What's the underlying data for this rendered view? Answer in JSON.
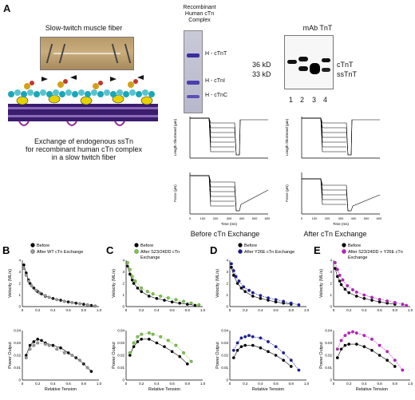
{
  "panel_A": {
    "letter": "A",
    "fiber_title": "Slow-twitch muscle fiber",
    "exchange_caption_lines": [
      "Exchange of endogenous ssTn",
      "for recombinant human cTn complex",
      "in a slow twitch fiber"
    ],
    "complex_title_lines": [
      "Recombinant",
      "Human cTn",
      "Complex"
    ],
    "gel_labels": [
      "H - cTnT",
      "H - cTnI",
      "H - cTnC"
    ],
    "western_title": "mAb TnT",
    "mw_labels": [
      "36 kD",
      "33 kD"
    ],
    "band_labels": [
      "cTnT",
      "ssTnT"
    ],
    "lane_numbers": [
      "1",
      "2",
      "3",
      "4"
    ],
    "length_ylabel": "Length Shortened (µm)",
    "length_ticks": [
      "0",
      "20",
      "40",
      "60",
      "80",
      "100",
      "120",
      "140"
    ],
    "force_ylabel": "Force (µN)",
    "force_ticks": [
      "0",
      "20",
      "40",
      "60",
      "80",
      "100",
      "120"
    ],
    "time_label": "Time (ms)",
    "time_ticks": [
      "0",
      "100",
      "200",
      "300",
      "400",
      "500",
      "600"
    ],
    "before_caption": "Before cTn Exchange",
    "after_caption": "After cTn Exchange"
  },
  "bottom_panels": [
    {
      "letter": "B",
      "legend": [
        "Before",
        "After WT cTn Exchange"
      ],
      "after_color": "#9a9a9a"
    },
    {
      "letter": "C",
      "legend": [
        "Before",
        "After S23/24DD cTn",
        "Exchange"
      ],
      "after_color": "#7ac943"
    },
    {
      "letter": "D",
      "legend": [
        "Before",
        "After Y26E cTn Exchange"
      ],
      "after_color": "#1a1aa8"
    },
    {
      "letter": "E",
      "legend": [
        "Before",
        "After S23/24DD + Y26E cTn",
        "Exchange"
      ],
      "after_color": "#c21ec9"
    }
  ],
  "axes": {
    "velocity_ylabel": "Velocity (ML/s)",
    "power_ylabel": "Power Output",
    "xlabel": "Relative Tension",
    "velocity_ticks": [
      "0",
      "1",
      "2",
      "3",
      "4"
    ],
    "power_ticks": [
      "0",
      "0.01",
      "0.02",
      "0.03",
      "0.04"
    ],
    "x_ticks": [
      "0",
      "0.2",
      "0.4",
      "0.6",
      "0.8",
      "1.0"
    ]
  },
  "chart_data": [
    {
      "type": "scatter",
      "panel": "B",
      "xlabel": "Relative Tension",
      "ylabel": "Velocity (ML/s)",
      "ylim": [
        0,
        4
      ],
      "xlim": [
        0,
        1
      ],
      "series": [
        {
          "name": "Before",
          "color": "#000000",
          "x": [
            0.02,
            0.05,
            0.08,
            0.1,
            0.15,
            0.2,
            0.25,
            0.3,
            0.4,
            0.5,
            0.6,
            0.7,
            0.8,
            0.9,
            0.95
          ],
          "y": [
            3.6,
            2.9,
            2.3,
            2.0,
            1.6,
            1.3,
            1.1,
            0.9,
            0.7,
            0.55,
            0.4,
            0.3,
            0.2,
            0.1,
            0.05
          ]
        },
        {
          "name": "After WT cTn Exchange",
          "color": "#9a9a9a",
          "x": [
            0.02,
            0.05,
            0.08,
            0.12,
            0.18,
            0.22,
            0.3,
            0.35,
            0.45,
            0.55,
            0.65,
            0.75,
            0.85,
            0.95
          ],
          "y": [
            3.3,
            2.7,
            2.2,
            1.8,
            1.4,
            1.2,
            0.95,
            0.8,
            0.6,
            0.45,
            0.35,
            0.25,
            0.15,
            0.05
          ]
        }
      ]
    },
    {
      "type": "scatter",
      "panel": "B",
      "xlabel": "Relative Tension",
      "ylabel": "Power Output",
      "ylim": [
        0,
        0.04
      ],
      "xlim": [
        0,
        1
      ],
      "series": [
        {
          "name": "Before",
          "color": "#000000",
          "x": [
            0.05,
            0.1,
            0.15,
            0.2,
            0.25,
            0.3,
            0.4,
            0.5,
            0.6,
            0.7,
            0.8,
            0.9
          ],
          "y": [
            0.02,
            0.028,
            0.031,
            0.033,
            0.032,
            0.03,
            0.028,
            0.026,
            0.022,
            0.018,
            0.013,
            0.007
          ]
        },
        {
          "name": "After WT cTn Exchange",
          "color": "#9a9a9a",
          "x": [
            0.05,
            0.1,
            0.15,
            0.2,
            0.3,
            0.35,
            0.45,
            0.55,
            0.65,
            0.75,
            0.85
          ],
          "y": [
            0.018,
            0.025,
            0.028,
            0.03,
            0.029,
            0.028,
            0.025,
            0.022,
            0.02,
            0.016,
            0.01
          ]
        }
      ]
    },
    {
      "type": "scatter",
      "panel": "C",
      "xlabel": "Relative Tension",
      "ylabel": "Velocity (ML/s)",
      "ylim": [
        0,
        4
      ],
      "xlim": [
        0,
        1
      ],
      "series": [
        {
          "name": "Before",
          "color": "#000000",
          "x": [
            0.02,
            0.05,
            0.08,
            0.1,
            0.15,
            0.2,
            0.3,
            0.4,
            0.5,
            0.6,
            0.7,
            0.8,
            0.9
          ],
          "y": [
            3.5,
            2.8,
            2.3,
            2.0,
            1.6,
            1.3,
            0.9,
            0.7,
            0.55,
            0.4,
            0.3,
            0.2,
            0.1
          ]
        },
        {
          "name": "After S23/24DD cTn Exchange",
          "color": "#7ac943",
          "x": [
            0.02,
            0.05,
            0.08,
            0.12,
            0.2,
            0.28,
            0.35,
            0.45,
            0.55,
            0.65,
            0.75,
            0.85,
            0.95
          ],
          "y": [
            3.8,
            3.2,
            2.6,
            2.2,
            1.6,
            1.3,
            1.1,
            0.9,
            0.75,
            0.6,
            0.45,
            0.3,
            0.15
          ]
        }
      ]
    },
    {
      "type": "scatter",
      "panel": "C",
      "xlabel": "Relative Tension",
      "ylabel": "Power Output",
      "ylim": [
        0,
        0.04
      ],
      "xlim": [
        0,
        1
      ],
      "series": [
        {
          "name": "Before",
          "color": "#000000",
          "x": [
            0.05,
            0.1,
            0.15,
            0.2,
            0.3,
            0.4,
            0.5,
            0.6,
            0.7,
            0.8
          ],
          "y": [
            0.02,
            0.027,
            0.031,
            0.033,
            0.033,
            0.03,
            0.027,
            0.023,
            0.019,
            0.013
          ]
        },
        {
          "name": "After S23/24DD cTn Exchange",
          "color": "#7ac943",
          "x": [
            0.05,
            0.1,
            0.15,
            0.2,
            0.3,
            0.35,
            0.45,
            0.55,
            0.65,
            0.75,
            0.85
          ],
          "y": [
            0.022,
            0.03,
            0.035,
            0.037,
            0.038,
            0.037,
            0.035,
            0.032,
            0.028,
            0.022,
            0.015
          ]
        }
      ]
    },
    {
      "type": "scatter",
      "panel": "D",
      "xlabel": "Relative Tension",
      "ylabel": "Velocity (ML/s)",
      "ylim": [
        0,
        4
      ],
      "xlim": [
        0,
        1
      ],
      "series": [
        {
          "name": "Before",
          "color": "#000000",
          "x": [
            0.02,
            0.05,
            0.1,
            0.15,
            0.2,
            0.3,
            0.4,
            0.5,
            0.6,
            0.7,
            0.8
          ],
          "y": [
            3.4,
            2.7,
            2.0,
            1.6,
            1.3,
            0.9,
            0.7,
            0.55,
            0.4,
            0.3,
            0.2
          ]
        },
        {
          "name": "After Y26E cTn Exchange",
          "color": "#1a1aa8",
          "x": [
            0.02,
            0.05,
            0.08,
            0.12,
            0.18,
            0.25,
            0.3,
            0.4,
            0.5,
            0.6,
            0.7,
            0.8,
            0.9
          ],
          "y": [
            3.7,
            3.1,
            2.6,
            2.2,
            1.7,
            1.4,
            1.2,
            0.95,
            0.75,
            0.6,
            0.45,
            0.3,
            0.15
          ]
        }
      ]
    },
    {
      "type": "scatter",
      "panel": "D",
      "xlabel": "Relative Tension",
      "ylabel": "Power Output",
      "ylim": [
        0,
        0.04
      ],
      "xlim": [
        0,
        1
      ],
      "series": [
        {
          "name": "Before",
          "color": "#000000",
          "x": [
            0.05,
            0.1,
            0.15,
            0.2,
            0.3,
            0.4,
            0.5,
            0.6,
            0.7,
            0.8
          ],
          "y": [
            0.018,
            0.024,
            0.027,
            0.028,
            0.028,
            0.026,
            0.023,
            0.02,
            0.016,
            0.011
          ]
        },
        {
          "name": "After Y26E cTn Exchange",
          "color": "#1a1aa8",
          "x": [
            0.05,
            0.1,
            0.15,
            0.2,
            0.25,
            0.3,
            0.4,
            0.5,
            0.6,
            0.7,
            0.8,
            0.9
          ],
          "y": [
            0.024,
            0.03,
            0.034,
            0.035,
            0.036,
            0.035,
            0.034,
            0.031,
            0.027,
            0.022,
            0.016,
            0.008
          ]
        }
      ]
    },
    {
      "type": "scatter",
      "panel": "E",
      "xlabel": "Relative Tension",
      "ylabel": "Velocity (ML/s)",
      "ylim": [
        0,
        4
      ],
      "xlim": [
        0,
        1
      ],
      "series": [
        {
          "name": "Before",
          "color": "#000000",
          "x": [
            0.02,
            0.05,
            0.08,
            0.1,
            0.15,
            0.2,
            0.3,
            0.4,
            0.5,
            0.6,
            0.7,
            0.8
          ],
          "y": [
            3.3,
            2.6,
            2.2,
            1.9,
            1.5,
            1.2,
            0.9,
            0.7,
            0.55,
            0.4,
            0.3,
            0.2
          ]
        },
        {
          "name": "After S23/24DD + Y26E cTn Exchange",
          "color": "#c21ec9",
          "x": [
            0.02,
            0.05,
            0.08,
            0.12,
            0.18,
            0.25,
            0.3,
            0.4,
            0.5,
            0.6,
            0.7,
            0.8,
            0.9,
            0.95
          ],
          "y": [
            3.8,
            3.2,
            2.7,
            2.3,
            1.8,
            1.45,
            1.25,
            1.0,
            0.8,
            0.62,
            0.48,
            0.35,
            0.2,
            0.1
          ]
        }
      ]
    },
    {
      "type": "scatter",
      "panel": "E",
      "xlabel": "Relative Tension",
      "ylabel": "Power Output",
      "ylim": [
        0,
        0.04
      ],
      "xlim": [
        0,
        1
      ],
      "series": [
        {
          "name": "Before",
          "color": "#000000",
          "x": [
            0.05,
            0.1,
            0.15,
            0.2,
            0.3,
            0.4,
            0.5,
            0.6,
            0.7,
            0.8
          ],
          "y": [
            0.018,
            0.025,
            0.028,
            0.029,
            0.029,
            0.027,
            0.024,
            0.02,
            0.016,
            0.011
          ]
        },
        {
          "name": "After S23/24DD + Y26E cTn Exchange",
          "color": "#c21ec9",
          "x": [
            0.05,
            0.1,
            0.15,
            0.2,
            0.25,
            0.3,
            0.4,
            0.5,
            0.6,
            0.7,
            0.8,
            0.9
          ],
          "y": [
            0.025,
            0.032,
            0.036,
            0.038,
            0.039,
            0.038,
            0.036,
            0.033,
            0.028,
            0.023,
            0.016,
            0.008
          ]
        }
      ]
    }
  ]
}
